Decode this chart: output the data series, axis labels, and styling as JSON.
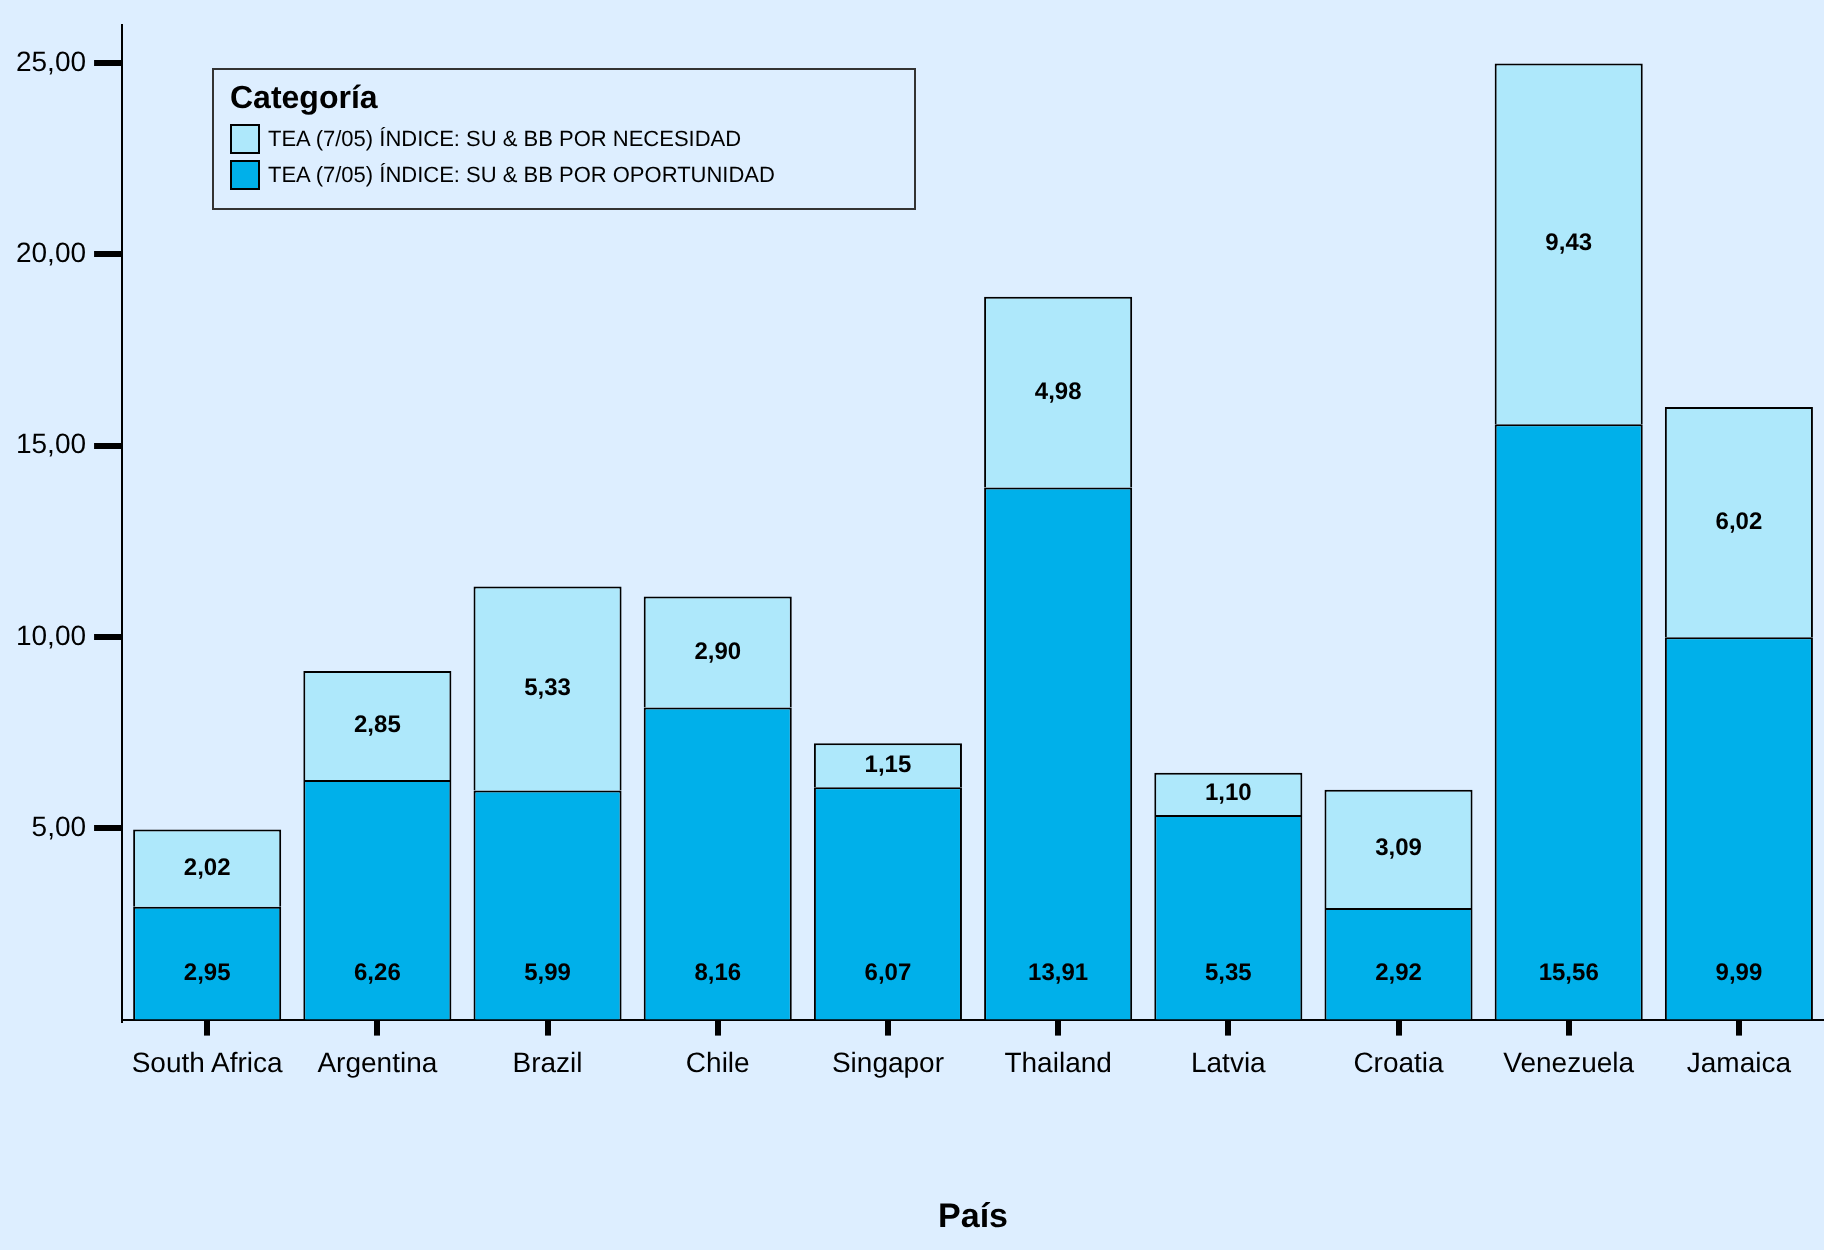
{
  "chart_data": {
    "type": "bar",
    "stacked": true,
    "xlabel": "País",
    "legend_title": "Categoría",
    "legend": "top left",
    "categories": [
      "South Africa",
      "Argentina",
      "Brazil",
      "Chile",
      "Singapor",
      "Thailand",
      "Latvia",
      "Croatia",
      "Venezuela",
      "Jamaica"
    ],
    "series": [
      {
        "name": "TEA  (7/05) ÍNDICE: SU & BB POR OPORTUNIDAD",
        "color": "#00b0ea",
        "values": [
          2.95,
          6.26,
          5.99,
          8.16,
          6.07,
          13.91,
          5.35,
          2.92,
          15.56,
          9.99
        ],
        "value_labels": [
          "2,95",
          "6,26",
          "5,99",
          "8,16",
          "6,07",
          "13,91",
          "5,35",
          "2,92",
          "15,56",
          "9,99"
        ]
      },
      {
        "name": "TEA  (7/05) ÍNDICE: SU & BB POR NECESIDAD",
        "color": "#aee8fb",
        "values": [
          2.02,
          2.85,
          5.33,
          2.9,
          1.15,
          4.98,
          1.1,
          3.09,
          9.43,
          6.02
        ],
        "value_labels": [
          "2,02",
          "2,85",
          "5,33",
          "2,90",
          "1,15",
          "4,98",
          "1,10",
          "3,09",
          "9,43",
          "6,02"
        ]
      }
    ],
    "ylim": [
      0,
      26
    ],
    "yticks": [
      {
        "value": 5,
        "label": "5,00"
      },
      {
        "value": 10,
        "label": "10,00"
      },
      {
        "value": 15,
        "label": "15,00"
      },
      {
        "value": 20,
        "label": "20,00"
      },
      {
        "value": 25,
        "label": "25,00"
      }
    ]
  }
}
